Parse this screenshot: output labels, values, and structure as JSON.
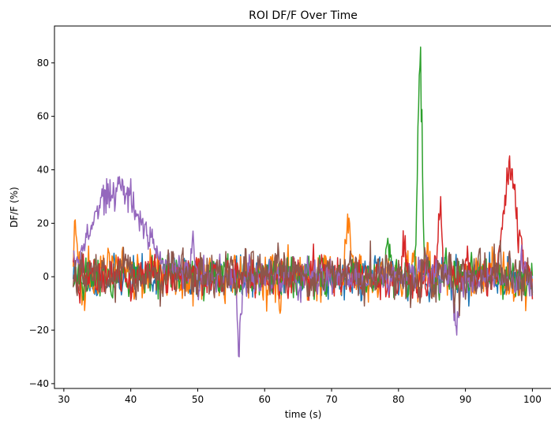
{
  "chart_data": {
    "type": "line",
    "title": "ROI DF/F Over Time",
    "xlabel": "time (s)",
    "ylabel": "DF/F (%)",
    "xlim": [
      28.6,
      102.9
    ],
    "ylim": [
      -41.8,
      93.8
    ],
    "xticks": [
      30,
      40,
      50,
      60,
      70,
      80,
      90,
      100
    ],
    "yticks": [
      -40,
      -20,
      0,
      20,
      40,
      60,
      80
    ],
    "ytick_labels": [
      "−40",
      "−20",
      "0",
      "20",
      "40",
      "60",
      "80"
    ],
    "grid": false,
    "legend": "none",
    "series": [
      {
        "color": "#1f77b4",
        "baseline": 0,
        "noise": 5,
        "seed": 11,
        "events": []
      },
      {
        "color": "#ff7f0e",
        "baseline": 0,
        "noise": 6.5,
        "seed": 23,
        "events": [
          {
            "t": 31.8,
            "amp": 20,
            "width": 0.3
          },
          {
            "t": 72.5,
            "amp": 18,
            "width": 0.25
          }
        ]
      },
      {
        "color": "#2ca02c",
        "baseline": 0,
        "noise": 5,
        "seed": 37,
        "events": [
          {
            "t": 83.2,
            "amp": 78,
            "width": 0.35
          },
          {
            "t": 78.5,
            "amp": 12,
            "width": 0.3
          }
        ]
      },
      {
        "color": "#d62728",
        "baseline": 0,
        "noise": 5,
        "seed": 41,
        "events": [
          {
            "t": 86.2,
            "amp": 25,
            "width": 0.3
          },
          {
            "t": 96.7,
            "amp": 40,
            "width": 0.9
          },
          {
            "t": 80.8,
            "amp": 15,
            "width": 0.25
          }
        ]
      },
      {
        "color": "#9467bd",
        "baseline": 0,
        "noise": 4.5,
        "seed": 53,
        "events": [
          {
            "t": 38.0,
            "amp": 33,
            "width": 3.6
          },
          {
            "t": 56.2,
            "amp": -28,
            "width": 0.3
          },
          {
            "t": 88.7,
            "amp": -20,
            "width": 0.3
          },
          {
            "t": 49.3,
            "amp": 17,
            "width": 0.25
          }
        ]
      },
      {
        "color": "#8c564b",
        "baseline": 0,
        "noise": 6,
        "seed": 67,
        "events": []
      }
    ],
    "t_start": 31.4,
    "t_end": 100.0,
    "dt": 0.1
  }
}
